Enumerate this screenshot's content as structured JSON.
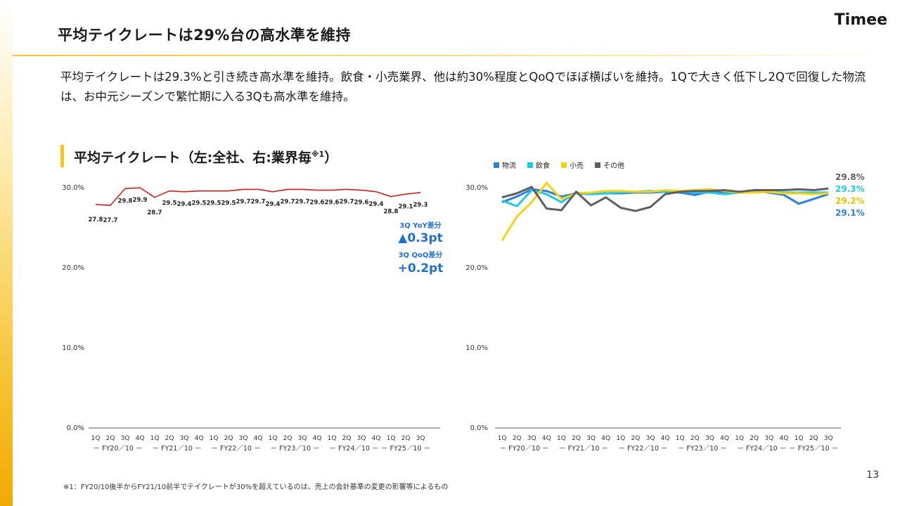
{
  "header": {
    "title": "平均テイクレートは29%台の高水準を維持",
    "logo": "Timee"
  },
  "body_text": "平均テイクレートは29.3%と引き続き高水準を維持。飲食・小売業界、他は約30%程度とQoQでほぼ横ばいを維持。1Qで大きく低下し2Qで回復した物流は、お中元シーズンで繁忙期に入る3Qも高水準を維持。",
  "section": {
    "label": "平均テイクレート（左:全社、右:業界毎",
    "label_sup": "※1",
    "label_close": "）"
  },
  "annotations": {
    "yoy_label": "3Q YoY差分",
    "yoy_value": "▲0.3pt",
    "qoq_label": "3Q QoQ差分",
    "qoq_value": "+0.2pt"
  },
  "footnote": "※1：FY20/10後半からFY21/10前半でテイクレートが30%を超えているのは、売上の会計基準の変更の影響等によるもの",
  "page_number": "13",
  "chart_data": [
    {
      "type": "line",
      "y_tick_labels": [
        "30.0%",
        "20.0%",
        "10.0%",
        "0.0%"
      ],
      "ylim": [
        0,
        30
      ],
      "grid": false,
      "x_quarters": [
        "1Q",
        "2Q",
        "3Q",
        "4Q",
        "1Q",
        "2Q",
        "3Q",
        "4Q",
        "1Q",
        "2Q",
        "3Q",
        "4Q",
        "1Q",
        "2Q",
        "3Q",
        "4Q",
        "1Q",
        "2Q",
        "3Q",
        "4Q",
        "1Q",
        "2Q",
        "3Q"
      ],
      "x_groups": [
        "FY20／10",
        "FY21／10",
        "FY22／10",
        "FY23／10",
        "FY24／10",
        "FY25／10"
      ],
      "series": [
        {
          "color": "#cc1f1f",
          "values": [
            27.8,
            27.7,
            29.8,
            29.9,
            28.7,
            29.5,
            29.4,
            29.5,
            29.5,
            29.5,
            29.7,
            29.7,
            29.4,
            29.7,
            29.7,
            29.6,
            29.6,
            29.7,
            29.6,
            29.4,
            28.8,
            29.1,
            29.3
          ],
          "labels": [
            "27.8",
            "27.7",
            "29.8",
            "29.9",
            "28.7",
            "29.5",
            "29.4",
            "29.5",
            "29.5",
            "29.5",
            "29.7",
            "29.7",
            "29.4",
            "29.7",
            "29.7",
            "29.6",
            "29.6",
            "29.7",
            "29.6",
            "29.4",
            "28.8",
            "29.1",
            "29.3"
          ]
        }
      ]
    },
    {
      "type": "line",
      "y_tick_labels": [
        "30.0%",
        "20.0%",
        "10.0%",
        "0.0%"
      ],
      "ylim": [
        0,
        30
      ],
      "grid": false,
      "legend_position": "top-left",
      "x_quarters": [
        "1Q",
        "2Q",
        "3Q",
        "4Q",
        "1Q",
        "2Q",
        "3Q",
        "4Q",
        "1Q",
        "2Q",
        "3Q",
        "4Q",
        "1Q",
        "2Q",
        "3Q",
        "4Q",
        "1Q",
        "2Q",
        "3Q",
        "4Q",
        "1Q",
        "2Q",
        "3Q"
      ],
      "x_groups": [
        "FY20／10",
        "FY21／10",
        "FY22／10",
        "FY23／10",
        "FY24／10",
        "FY25／10"
      ],
      "series": [
        {
          "name": "物流",
          "color": "#2f7de1",
          "end_label": "29.1%",
          "values": [
            28.1,
            28.8,
            29.7,
            29.5,
            28.8,
            29.2,
            29.1,
            29.2,
            29.2,
            29.3,
            29.3,
            29.4,
            29.3,
            29.0,
            29.4,
            29.4,
            29.3,
            29.5,
            29.3,
            29.0,
            27.9,
            28.5,
            29.1
          ]
        },
        {
          "name": "飲食",
          "color": "#1fc7e8",
          "end_label": "29.3%",
          "values": [
            28.3,
            27.6,
            29.6,
            29.1,
            28.1,
            29.3,
            29.1,
            29.2,
            29.3,
            29.4,
            29.5,
            29.4,
            29.4,
            29.3,
            29.3,
            29.1,
            29.3,
            29.4,
            29.4,
            29.3,
            29.3,
            29.3,
            29.3
          ]
        },
        {
          "name": "小売",
          "color": "#f5d216",
          "end_label": "29.2%",
          "values": [
            23.3,
            26.3,
            28.1,
            30.5,
            28.5,
            29.2,
            29.3,
            29.5,
            29.5,
            29.4,
            29.4,
            29.6,
            29.5,
            29.6,
            29.7,
            29.5,
            29.3,
            29.3,
            29.4,
            29.2,
            29.2,
            29.1,
            29.2
          ]
        },
        {
          "name": "その他",
          "color": "#5f5f5f",
          "end_label": "29.8%",
          "values": [
            28.7,
            29.2,
            30.0,
            27.3,
            27.1,
            29.4,
            27.7,
            28.7,
            27.4,
            27.0,
            27.5,
            29.1,
            29.4,
            29.5,
            29.5,
            29.6,
            29.4,
            29.6,
            29.6,
            29.6,
            29.7,
            29.6,
            29.8
          ]
        }
      ]
    }
  ]
}
